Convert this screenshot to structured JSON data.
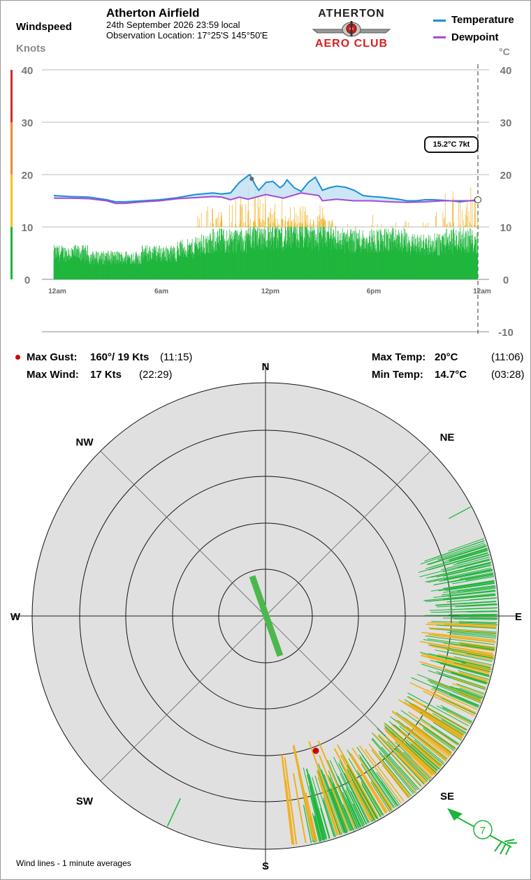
{
  "header": {
    "windspeed_label": "Windspeed",
    "knots_label": "Knots",
    "station_name": "Atherton Airfield",
    "date_time": "24th September 2026  23:59 local",
    "observation_location": "Observation Location:  17°25'S 145°50'E",
    "logo_top": "ATHERTON",
    "logo_bottom": "AERO CLUB",
    "legend_temperature": "Temperature",
    "legend_dewpoint": "Dewpoint",
    "celsius_label": "°C"
  },
  "colors": {
    "temperature": "#1b8fd6",
    "dewpoint": "#a64ad6",
    "wind_green": "#1cb53a",
    "wind_amber": "#f0b020",
    "gust_red": "#d00000",
    "scale_red": "#d32a2a",
    "scale_orange": "#ef8a2a",
    "scale_yellow": "#f2c21a"
  },
  "current_badge": "15.2°C  7kt",
  "stats": {
    "max_gust_label": "Max Gust:",
    "max_gust_value": "160°/  19 Kts",
    "max_gust_time": "(11:15)",
    "max_wind_label": "Max Wind:",
    "max_wind_value": "17 Kts",
    "max_wind_time": "(22:29)",
    "max_temp_label": "Max Temp:",
    "max_temp_value": "20°C",
    "max_temp_time": "(11:06)",
    "min_temp_label": "Min Temp:",
    "min_temp_value": "14.7°C",
    "min_temp_time": "(03:28)"
  },
  "compass": {
    "n": "N",
    "ne": "NE",
    "e": "E",
    "se": "SE",
    "s": "S",
    "sw": "SW",
    "w": "W",
    "nw": "NW",
    "current_wind_speed": "7",
    "current_wind_direction_deg": 135
  },
  "footer_note": "Wind lines - 1 minute averages",
  "chart_data": {
    "type": "line",
    "x_tick_labels": [
      "12am",
      "6am",
      "12pm",
      "6pm",
      "12am"
    ],
    "x_range_hours": [
      0,
      24
    ],
    "left_axis": {
      "label": "Knots",
      "ylim": [
        0,
        40
      ],
      "ticks": [
        "0",
        "10",
        "20",
        "30",
        "40"
      ]
    },
    "right_axis": {
      "label": "°C",
      "ylim": [
        -10,
        40
      ],
      "ticks": [
        "-10",
        "0",
        "10",
        "20",
        "30",
        "40"
      ]
    },
    "series": [
      {
        "name": "Temperature",
        "axis": "right",
        "x": [
          0,
          1,
          2,
          3,
          3.5,
          4,
          5,
          6,
          7,
          8,
          9,
          9.5,
          10,
          10.5,
          11,
          11.1,
          11.4,
          11.6,
          12,
          12.4,
          12.8,
          13,
          13.2,
          13.6,
          14,
          14.4,
          14.8,
          15.2,
          15.6,
          16,
          16.5,
          17,
          17.5,
          18,
          18.5,
          19,
          19.5,
          20,
          20.5,
          21,
          21.5,
          22,
          22.5,
          23,
          23.5,
          24
        ],
        "values": [
          16,
          15.8,
          15.7,
          15.2,
          14.8,
          14.8,
          15.0,
          15.2,
          15.6,
          16.2,
          16.5,
          16.3,
          16.5,
          18.5,
          19.8,
          20.0,
          18.0,
          17.0,
          18.5,
          18.7,
          17.5,
          18.0,
          19.0,
          17.5,
          16.8,
          18.5,
          19.5,
          17.0,
          17.5,
          17.8,
          17.6,
          17.0,
          16.0,
          15.8,
          15.7,
          15.5,
          15.3,
          15.0,
          15.0,
          15.2,
          15.2,
          15.1,
          15.0,
          14.8,
          15.0,
          15.2
        ]
      },
      {
        "name": "Dewpoint",
        "axis": "right",
        "x": [
          0,
          1,
          2,
          3,
          3.5,
          4,
          5,
          6,
          7,
          8,
          9,
          9.5,
          10,
          10.5,
          11,
          12,
          13,
          14,
          15,
          15.2,
          16,
          17,
          18,
          19,
          20,
          21,
          22,
          23,
          24
        ],
        "values": [
          15.5,
          15.5,
          15.4,
          15.0,
          14.5,
          14.5,
          14.8,
          15.0,
          15.4,
          15.6,
          15.8,
          15.7,
          15.2,
          15.7,
          15.3,
          16.2,
          15.5,
          16.5,
          16.0,
          15.0,
          15.3,
          15.0,
          15.0,
          14.8,
          14.7,
          14.8,
          15.0,
          15.0,
          15.0
        ]
      },
      {
        "name": "Wind",
        "axis": "left",
        "kind": "bars_1min",
        "hourly_mean_kts": [
          6,
          6,
          5,
          5,
          5,
          6,
          6,
          7,
          8,
          9,
          9,
          10,
          10,
          10,
          10,
          10,
          9,
          9,
          9,
          9,
          8,
          8,
          9,
          9
        ],
        "hourly_gust_kts": [
          7,
          8,
          7,
          7,
          7,
          9,
          9,
          10,
          14,
          14,
          16,
          19,
          16,
          14,
          14,
          14,
          11,
          11,
          12,
          11,
          12,
          13,
          17,
          17
        ]
      }
    ],
    "gust_segment_colors_kts": {
      "green_below": 10,
      "amber_from": 10,
      "orange_from": 30,
      "red_from": 35
    }
  }
}
